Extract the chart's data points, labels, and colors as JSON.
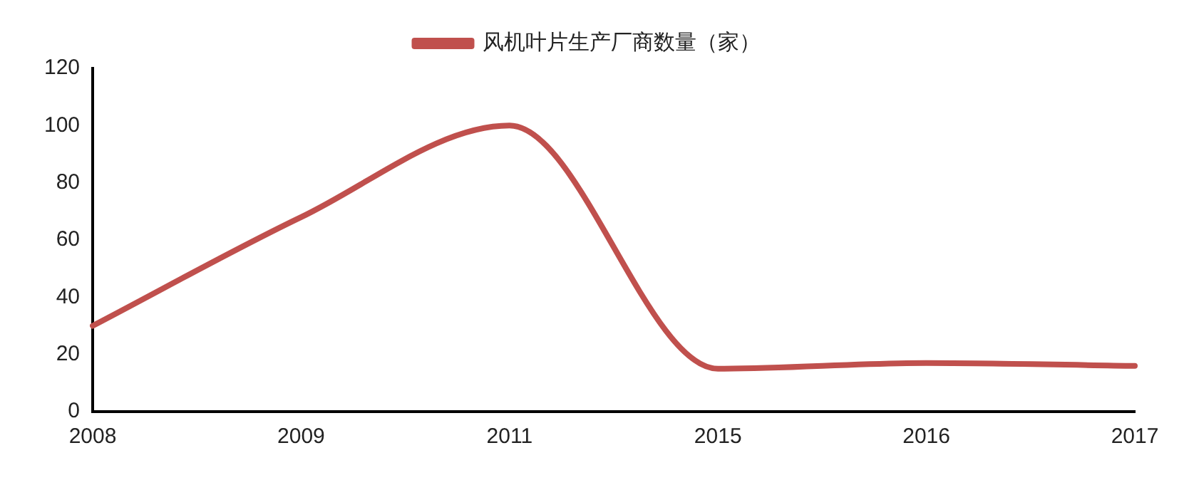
{
  "chart_data": {
    "type": "line",
    "categories": [
      "2008",
      "2009",
      "2011",
      "2015",
      "2016",
      "2017"
    ],
    "series": [
      {
        "name": "风机叶片生产厂商数量（家）",
        "color": "#c0504d",
        "values": [
          30,
          68,
          100,
          15,
          17,
          16
        ]
      }
    ],
    "ylim": [
      0,
      120
    ],
    "yticks": [
      0,
      20,
      40,
      60,
      80,
      100,
      120
    ],
    "grid": false,
    "legend": "top",
    "marker": "none",
    "line_style": "solid"
  }
}
